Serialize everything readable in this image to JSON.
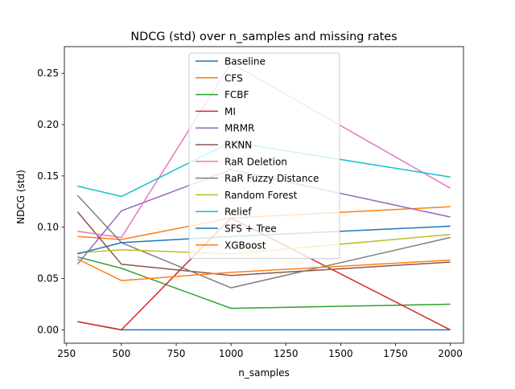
{
  "chart_data": {
    "type": "line",
    "title": "NDCG (std) over n_samples and missing rates",
    "xlabel": "n_samples",
    "ylabel": "NDCG (std)",
    "xlim": [
      240,
      2060
    ],
    "ylim": [
      -0.013,
      0.276
    ],
    "x_ticks": [
      250,
      500,
      750,
      1000,
      1250,
      1500,
      1750,
      2000
    ],
    "x_tick_labels": [
      "250",
      "500",
      "750",
      "1000",
      "1250",
      "1500",
      "1750",
      "2000"
    ],
    "y_ticks": [
      0.0,
      0.05,
      0.1,
      0.15,
      0.2,
      0.25
    ],
    "y_tick_labels": [
      "0.00",
      "0.05",
      "0.10",
      "0.15",
      "0.20",
      "0.25"
    ],
    "grid": false,
    "legend_position": "top-center",
    "x": [
      300,
      500,
      1000,
      2000
    ],
    "series": [
      {
        "name": "Baseline",
        "color": "#1f77b4",
        "values": [
          0.008,
          0.0,
          0.0,
          0.0
        ]
      },
      {
        "name": "CFS",
        "color": "#ff7f0e",
        "values": [
          0.091,
          0.088,
          0.109,
          0.12
        ]
      },
      {
        "name": "FCBF",
        "color": "#2ca02c",
        "values": [
          0.071,
          0.06,
          0.021,
          0.025
        ]
      },
      {
        "name": "MI",
        "color": "#d62728",
        "values": [
          0.008,
          0.0,
          0.109,
          0.0
        ]
      },
      {
        "name": "MRMR",
        "color": "#9467bd",
        "values": [
          0.064,
          0.116,
          0.156,
          0.11
        ]
      },
      {
        "name": "RKNN",
        "color": "#8c564b",
        "values": [
          0.115,
          0.064,
          0.053,
          0.066
        ]
      },
      {
        "name": "RaR Deletion",
        "color": "#e377c2",
        "values": [
          0.096,
          0.09,
          0.26,
          0.138
        ]
      },
      {
        "name": "RaR Fuzzy Distance",
        "color": "#7f7f7f",
        "values": [
          0.131,
          0.085,
          0.041,
          0.09
        ]
      },
      {
        "name": "Random Forest",
        "color": "#bcbd22",
        "values": [
          0.075,
          0.078,
          0.074,
          0.093
        ]
      },
      {
        "name": "Relief",
        "color": "#17becf",
        "values": [
          0.14,
          0.13,
          0.183,
          0.149
        ]
      },
      {
        "name": "SFS + Tree",
        "color": "#1f77b4",
        "values": [
          0.074,
          0.085,
          0.091,
          0.101
        ]
      },
      {
        "name": "XGBoost",
        "color": "#ff7f0e",
        "values": [
          0.069,
          0.048,
          0.056,
          0.068
        ]
      }
    ]
  }
}
